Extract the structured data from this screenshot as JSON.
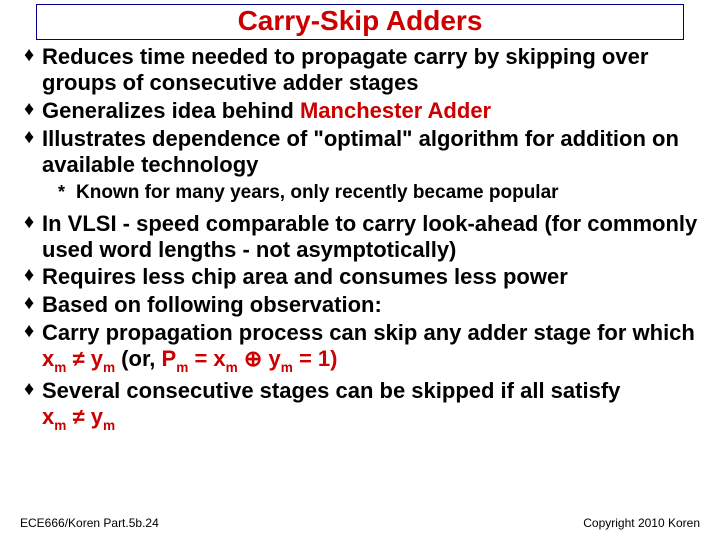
{
  "title": "Carry-Skip Adders",
  "bullets": {
    "b1": "Reduces time needed to propagate carry by skipping over groups of consecutive adder stages",
    "b2_pre": "Generalizes idea behind ",
    "b2_red": "Manchester Adder",
    "b3": "Illustrates dependence of \"optimal\" algorithm for addition on available technology",
    "sub1": "Known for many years, only recently became popular",
    "b4": "In VLSI - speed comparable to carry look-ahead (for commonly used word lengths - not asymptotically)",
    "b5": "Requires less chip area and consumes less power",
    "b6": "Based on following observation:",
    "b7_a": "Carry propagation process can skip any adder stage for which ",
    "b7_xm": "x",
    "b7_m": "m",
    "b7_neq": " ≠ ",
    "b7_ym": "y",
    "b7_b": " (or, ",
    "b7_Pm": "P",
    "b7_eq": " = ",
    "b7_oplus": " ⊕ ",
    "b7_eq1": " = 1)",
    "b8": "Several consecutive stages can be skipped if all satisfy"
  },
  "lastline": {
    "x": "x",
    "m": "m",
    "neq": " ≠ ",
    "y": "y"
  },
  "footer": {
    "left": "ECE666/Koren Part.5b.24",
    "right": "Copyright 2010 Koren"
  },
  "colors": {
    "title": "#cc0000",
    "text": "#000000",
    "accent": "#cc0000",
    "border": "#000088",
    "background": "#ffffff"
  },
  "fonts": {
    "title_size_pt": 21,
    "body_size_pt": 17,
    "sub_size_pt": 14,
    "footer_size_pt": 9
  }
}
